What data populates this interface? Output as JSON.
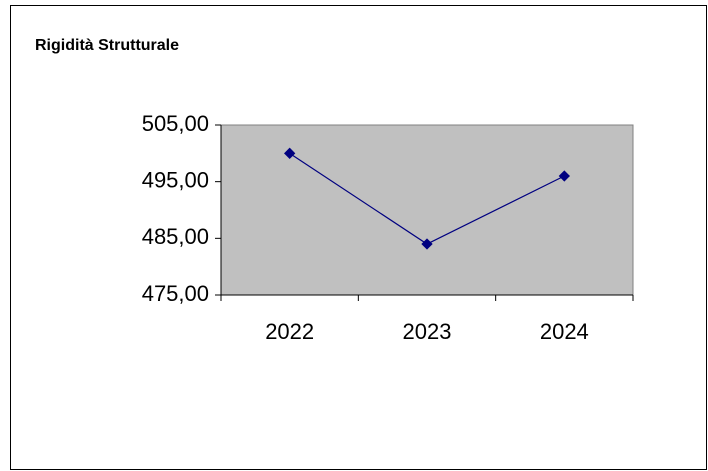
{
  "chart_data": {
    "type": "line",
    "title": "Rigidità Strutturale",
    "categories": [
      "2022",
      "2023",
      "2024"
    ],
    "series": [
      {
        "color": "#000080",
        "values": [
          500,
          484,
          496
        ]
      }
    ],
    "ylim": [
      475,
      505
    ],
    "yticks": [
      {
        "value": 475,
        "label": "475,00"
      },
      {
        "value": 485,
        "label": "485,00"
      },
      {
        "value": 495,
        "label": "495,00"
      },
      {
        "value": 505,
        "label": "505,00"
      }
    ],
    "plot_background": "#c0c0c0"
  }
}
